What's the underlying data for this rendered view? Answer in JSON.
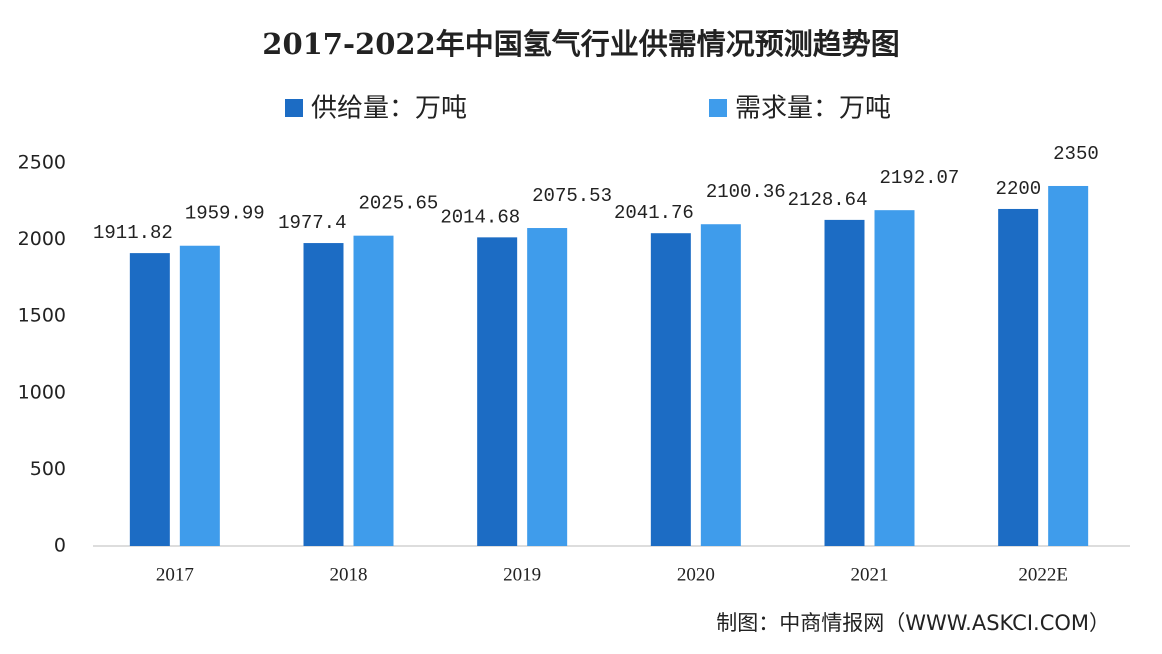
{
  "chart_data": {
    "type": "bar",
    "title": "2017-2022年中国氢气行业供需情况预测趋势图",
    "categories": [
      "2017",
      "2018",
      "2019",
      "2020",
      "2021",
      "2022E"
    ],
    "series": [
      {
        "name": "供给量：万吨",
        "color": "#1c6cc4",
        "values": [
          1911.82,
          1977.4,
          2014.68,
          2041.76,
          2128.64,
          2200
        ]
      },
      {
        "name": "需求量：万吨",
        "color": "#3f9ceb",
        "values": [
          1959.99,
          2025.65,
          2075.53,
          2100.36,
          2192.07,
          2350
        ]
      }
    ],
    "ylim": [
      0,
      2500
    ],
    "yticks": [
      0,
      500,
      1000,
      1500,
      2000,
      2500
    ],
    "grid": false,
    "legend": "top",
    "source": "制图：中商情报网（WWW.ASKCI.COM）"
  }
}
